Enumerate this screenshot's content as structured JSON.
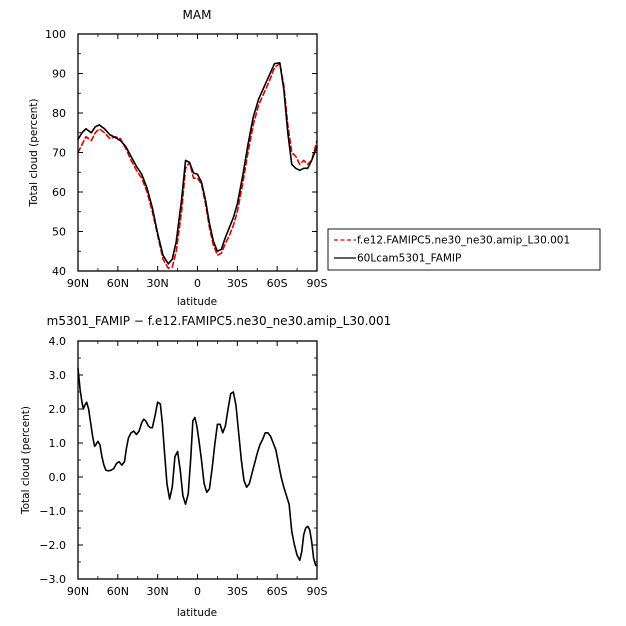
{
  "chart_data": [
    {
      "type": "line",
      "title": "MAM",
      "xlabel": "latitude",
      "ylabel": "Total cloud (percent)",
      "xlim": [
        90,
        -90
      ],
      "ylim": [
        40,
        100
      ],
      "xticks": [
        90,
        60,
        30,
        0,
        -30,
        -60,
        -90
      ],
      "xtick_labels": [
        "90N",
        "60N",
        "30N",
        "0",
        "30S",
        "60S",
        "90S"
      ],
      "yticks": [
        40,
        50,
        60,
        70,
        80,
        90,
        100
      ],
      "ytick_labels": [
        "40",
        "50",
        "60",
        "70",
        "80",
        "90",
        "100"
      ],
      "legend_position": "right",
      "series": [
        {
          "name": "f.e12.FAMIPC5.ne30_ne30.amip_L30.001",
          "color": "#e00000",
          "dash": "dashed",
          "x": [
            90,
            87,
            84,
            80,
            77,
            74,
            70,
            66,
            62,
            58,
            54,
            50,
            46,
            42,
            38,
            34,
            30,
            26,
            22,
            19,
            16,
            12,
            9,
            6,
            3,
            0,
            -3,
            -6,
            -9,
            -12,
            -15,
            -18,
            -21,
            -24,
            -27,
            -30,
            -34,
            -38,
            -42,
            -46,
            -50,
            -54,
            -58,
            -62,
            -65,
            -68,
            -71,
            -74,
            -77,
            -80,
            -83,
            -86,
            -90
          ],
          "y": [
            70,
            72,
            74,
            73,
            75,
            76,
            75,
            73.5,
            74,
            73.5,
            71,
            68,
            65.5,
            63.5,
            60,
            55,
            49,
            43,
            40.7,
            41,
            45,
            55,
            66,
            67.5,
            63.5,
            63.5,
            62,
            57,
            51,
            46.5,
            44,
            44.5,
            47,
            49,
            51.5,
            55,
            62,
            70,
            77,
            82,
            85,
            88,
            91.5,
            92.5,
            87,
            77,
            70,
            69,
            67,
            68,
            67,
            68,
            73
          ]
        },
        {
          "name": "60Lcam5301_FAMIP",
          "color": "#000000",
          "dash": "solid",
          "x": [
            90,
            87,
            84,
            80,
            77,
            74,
            70,
            66,
            62,
            58,
            54,
            50,
            46,
            42,
            38,
            34,
            30,
            26,
            22,
            19,
            16,
            12,
            9,
            6,
            3,
            0,
            -3,
            -6,
            -9,
            -12,
            -15,
            -18,
            -21,
            -24,
            -27,
            -30,
            -34,
            -38,
            -42,
            -46,
            -50,
            -54,
            -58,
            -62,
            -65,
            -68,
            -71,
            -74,
            -77,
            -80,
            -83,
            -86,
            -90
          ],
          "y": [
            73.3,
            75,
            76,
            75,
            76.5,
            77,
            76,
            74.5,
            73.8,
            73,
            71.5,
            69,
            66.5,
            64.5,
            61,
            56,
            49.5,
            44,
            41.8,
            43,
            47.5,
            58,
            68,
            67.5,
            64.8,
            64.5,
            62.5,
            58,
            52,
            47.5,
            45,
            45.5,
            48.5,
            51,
            53.5,
            57,
            64,
            72,
            79,
            83.5,
            86.5,
            89.5,
            92.5,
            92.7,
            86,
            75,
            67,
            66,
            65.5,
            66,
            66,
            68,
            71.5
          ]
        }
      ]
    },
    {
      "type": "line",
      "title": "m5301_FAMIP − f.e12.FAMIPC5.ne30_ne30.amip_L30.001",
      "xlabel": "latitude",
      "ylabel": "Total cloud (percent)",
      "xlim": [
        90,
        -90
      ],
      "ylim": [
        -3.0,
        4.0
      ],
      "xticks": [
        90,
        60,
        30,
        0,
        -30,
        -60,
        -90
      ],
      "xtick_labels": [
        "90N",
        "60N",
        "30N",
        "0",
        "30S",
        "60S",
        "90S"
      ],
      "yticks": [
        -3,
        -2,
        -1,
        0,
        1,
        2,
        3,
        4
      ],
      "ytick_labels": [
        "−3.0",
        "−2.0",
        "−1.0",
        "0.0",
        "1.0",
        "2.0",
        "3.0",
        "4.0"
      ],
      "series": [
        {
          "color": "#000000",
          "x": [
            90,
            88.5,
            87,
            86,
            85,
            83.5,
            82,
            80.5,
            79,
            77.5,
            76.5,
            75,
            73.5,
            72,
            70.5,
            69,
            67,
            65,
            63,
            61,
            59,
            57,
            55,
            53.5,
            52,
            50,
            48,
            46,
            44,
            42,
            40.5,
            39,
            37,
            35.5,
            34,
            32,
            30,
            28,
            26.5,
            25,
            23,
            21,
            19,
            17,
            15,
            13,
            11,
            9,
            7,
            5,
            3.5,
            2,
            0.5,
            -1,
            -3,
            -5,
            -7,
            -9,
            -11,
            -13,
            -15,
            -17,
            -19,
            -21,
            -23,
            -25,
            -27,
            -29,
            -31,
            -33,
            -35,
            -37,
            -39,
            -41,
            -43,
            -45,
            -47,
            -49,
            -51,
            -53,
            -55,
            -57,
            -59,
            -61,
            -63,
            -65,
            -67,
            -69,
            -71,
            -73,
            -75,
            -77,
            -78.5,
            -80,
            -81.5,
            -83,
            -84.5,
            -86,
            -87.5,
            -89,
            -90
          ],
          "y": [
            3.2,
            2.6,
            2.2,
            2.0,
            2.1,
            2.2,
            2.0,
            1.6,
            1.2,
            0.9,
            0.95,
            1.05,
            0.95,
            0.6,
            0.35,
            0.2,
            0.18,
            0.2,
            0.25,
            0.4,
            0.45,
            0.35,
            0.45,
            0.85,
            1.15,
            1.3,
            1.35,
            1.25,
            1.35,
            1.6,
            1.7,
            1.65,
            1.5,
            1.45,
            1.45,
            1.8,
            2.2,
            2.15,
            1.6,
            0.8,
            -0.2,
            -0.65,
            -0.3,
            0.6,
            0.75,
            0.2,
            -0.55,
            -0.8,
            -0.5,
            0.6,
            1.65,
            1.75,
            1.5,
            1.1,
            0.5,
            -0.2,
            -0.45,
            -0.35,
            0.25,
            0.95,
            1.55,
            1.55,
            1.3,
            1.5,
            2.0,
            2.45,
            2.5,
            2.1,
            1.3,
            0.5,
            -0.1,
            -0.3,
            -0.2,
            0.1,
            0.4,
            0.7,
            0.95,
            1.1,
            1.3,
            1.3,
            1.2,
            1.0,
            0.8,
            0.4,
            0.0,
            -0.3,
            -0.55,
            -0.8,
            -1.6,
            -2.0,
            -2.3,
            -2.45,
            -2.2,
            -1.7,
            -1.5,
            -1.45,
            -1.55,
            -1.9,
            -2.4,
            -2.6,
            -2.6
          ]
        }
      ]
    }
  ]
}
